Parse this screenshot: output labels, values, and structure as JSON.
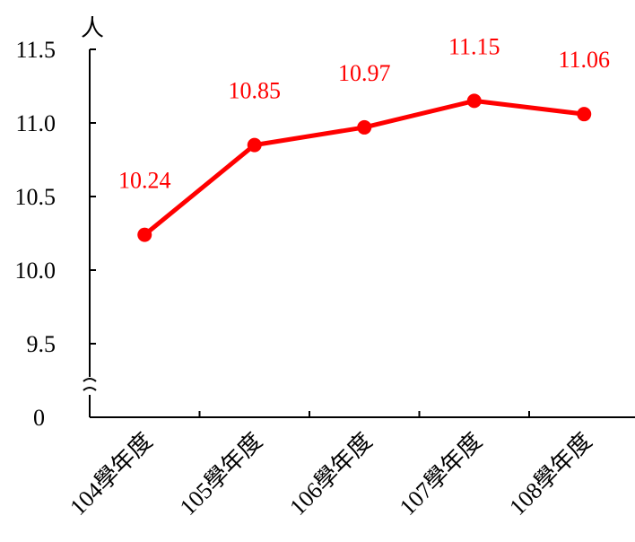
{
  "chart_data": {
    "type": "line",
    "y_unit": "人",
    "categories": [
      "104學年度",
      "105學年度",
      "106學年度",
      "107學年度",
      "108學年度"
    ],
    "series": [
      {
        "values": [
          10.24,
          10.85,
          10.97,
          11.15,
          11.06
        ],
        "color": "#ff0000"
      }
    ],
    "data_labels": [
      "10.24",
      "10.85",
      "10.97",
      "11.15",
      "11.06"
    ],
    "y_ticks": [
      {
        "value": 11.5,
        "label": "11.5"
      },
      {
        "value": 11.0,
        "label": "11.0"
      },
      {
        "value": 10.5,
        "label": "10.5"
      },
      {
        "value": 10.0,
        "label": "10.0"
      },
      {
        "value": 9.5,
        "label": "9.5"
      }
    ],
    "y_origin_label": "0",
    "ylim": [
      9.5,
      11.5
    ],
    "axis_break": true,
    "grid": false,
    "legend": "none"
  }
}
